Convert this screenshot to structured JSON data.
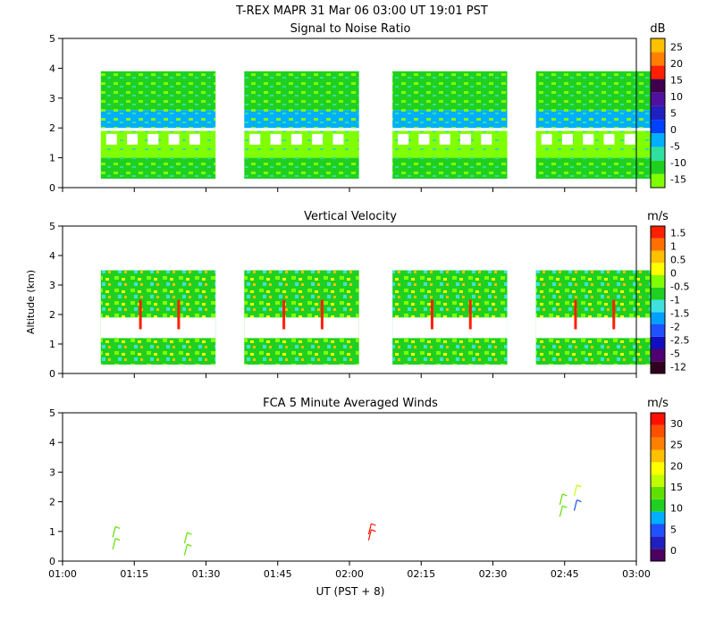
{
  "figure": {
    "title": "T-REX   MAPR 31 Mar 06   03:00 UT   19:01   PST",
    "x_axis_label": "UT  (PST + 8)",
    "x_range_minutes": [
      0,
      120
    ],
    "x_ticks": [
      {
        "value": 0,
        "label": "01:00"
      },
      {
        "value": 15,
        "label": "01:15"
      },
      {
        "value": 30,
        "label": "01:30"
      },
      {
        "value": 45,
        "label": "01:45"
      },
      {
        "value": 60,
        "label": "02:00"
      },
      {
        "value": 75,
        "label": "02:15"
      },
      {
        "value": 90,
        "label": "02:30"
      },
      {
        "value": 105,
        "label": "02:45"
      },
      {
        "value": 120,
        "label": "03:00"
      }
    ],
    "y_label": "Altitude (km)",
    "y_range": [
      0,
      5
    ],
    "y_ticks": [
      "0",
      "1",
      "2",
      "3",
      "4",
      "5"
    ]
  },
  "chart_data": [
    {
      "type": "heatmap",
      "title": "Signal to Noise Ratio",
      "units": "dB",
      "ylabel": "",
      "ylim": [
        0,
        5
      ],
      "colorbar_levels": [
        -15,
        -10,
        -5,
        0,
        5,
        10,
        15,
        20,
        25
      ],
      "colorbar_labels": [
        "-15",
        "-10",
        "-5",
        "0",
        "5",
        "10",
        "15",
        "20",
        "25"
      ],
      "colorbar_colors": [
        "#80ff00",
        "#20d020",
        "#30e0a0",
        "#00b0ff",
        "#0040ff",
        "#2020c0",
        "#5010a0",
        "#400050",
        "#ff2000",
        "#ff8000",
        "#ffc000"
      ],
      "data_blocks_minutes": [
        [
          8,
          32
        ],
        [
          38,
          62
        ],
        [
          69,
          93
        ],
        [
          99,
          123
        ]
      ],
      "data_altitude_km": [
        0.3,
        3.9
      ],
      "layers": [
        {
          "z_km": [
            0.3,
            1.0
          ],
          "dominant_db": -12
        },
        {
          "z_km": [
            1.0,
            1.9
          ],
          "dominant_db": -15
        },
        {
          "z_km": [
            2.0,
            2.6
          ],
          "dominant_db": -4
        },
        {
          "z_km": [
            2.6,
            3.9
          ],
          "dominant_db": -12
        }
      ]
    },
    {
      "type": "heatmap",
      "title": "Vertical Velocity",
      "units": "m/s",
      "ylabel": "Altitude (km)",
      "ylim": [
        0,
        5
      ],
      "colorbar_labels": [
        "-12",
        "-5",
        "-2.5",
        "-2",
        "-1.5",
        "-1",
        "-0.5",
        "0",
        "0.5",
        "1",
        "1.5"
      ],
      "colorbar_colors": [
        "#300020",
        "#500070",
        "#1010c0",
        "#2050ff",
        "#00a0ff",
        "#40e0e0",
        "#20d020",
        "#80ff00",
        "#ffff00",
        "#ffc000",
        "#ff7000",
        "#ff2000"
      ],
      "data_blocks_minutes": [
        [
          8,
          32
        ],
        [
          38,
          62
        ],
        [
          69,
          93
        ],
        [
          99,
          123
        ]
      ],
      "data_altitude_km": [
        0.3,
        3.5
      ],
      "gap_km": [
        1.2,
        1.9
      ],
      "dominant_ms": -0.5
    },
    {
      "type": "scatter",
      "title": "FCA 5 Minute Averaged Winds",
      "units": "m/s",
      "ylabel": "",
      "ylim": [
        0,
        5
      ],
      "colorbar_labels": [
        "0",
        "5",
        "10",
        "15",
        "20",
        "25",
        "30"
      ],
      "colorbar_colors": [
        "#4a0060",
        "#2020c0",
        "#2050ff",
        "#00b0ff",
        "#20d020",
        "#60e000",
        "#c0ff00",
        "#ffff00",
        "#ffc000",
        "#ff8000",
        "#ff5000",
        "#ff1000"
      ],
      "barbs": [
        {
          "t_min": 10.5,
          "z_km": 0.4,
          "speed_ms": 13
        },
        {
          "t_min": 10.5,
          "z_km": 0.8,
          "speed_ms": 13
        },
        {
          "t_min": 25.5,
          "z_km": 0.2,
          "speed_ms": 14
        },
        {
          "t_min": 25.5,
          "z_km": 0.6,
          "speed_ms": 14
        },
        {
          "t_min": 64,
          "z_km": 0.7,
          "speed_ms": 30
        },
        {
          "t_min": 64,
          "z_km": 0.9,
          "speed_ms": 30
        },
        {
          "t_min": 104,
          "z_km": 1.5,
          "speed_ms": 14
        },
        {
          "t_min": 104,
          "z_km": 1.9,
          "speed_ms": 14
        },
        {
          "t_min": 107,
          "z_km": 1.7,
          "speed_ms": 6
        },
        {
          "t_min": 107,
          "z_km": 2.2,
          "speed_ms": 15
        }
      ]
    }
  ]
}
